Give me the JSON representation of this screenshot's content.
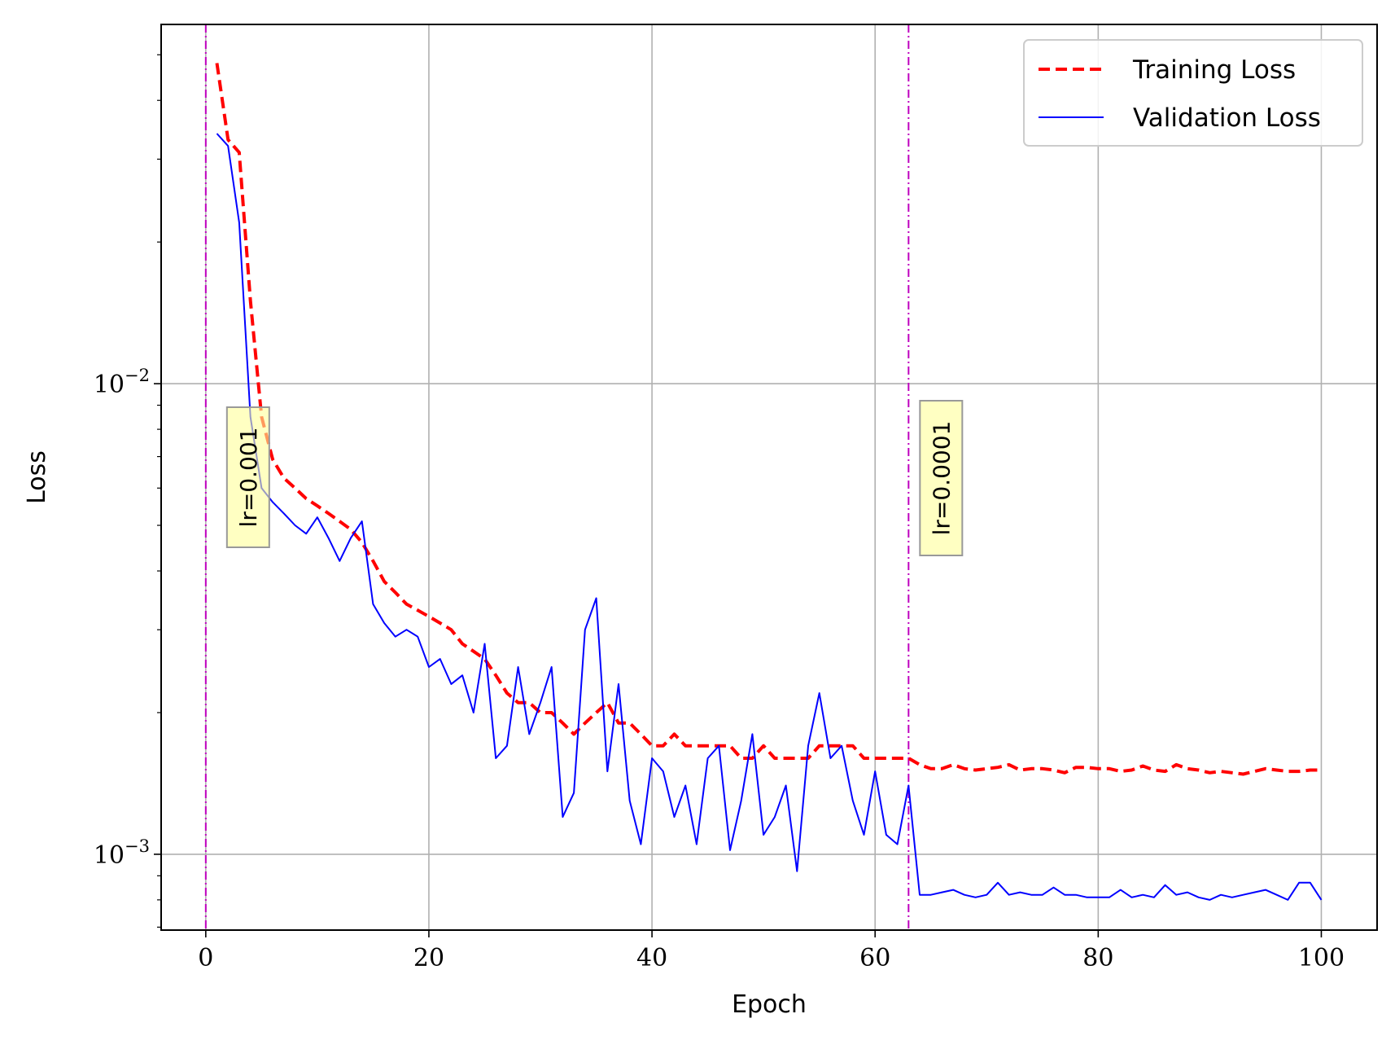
{
  "chart_data": {
    "type": "line",
    "xlabel": "Epoch",
    "ylabel": "Loss",
    "xlim": [
      -4,
      105
    ],
    "ylim": [
      0.00069,
      0.058
    ],
    "y_scale": "log",
    "grid": true,
    "legend_position": "top-right",
    "x_ticks": [
      0,
      20,
      40,
      60,
      80,
      100
    ],
    "x_tick_labels": [
      "0",
      "20",
      "40",
      "60",
      "80",
      "100"
    ],
    "y_major_ticks": [
      0.001,
      0.01
    ],
    "y_major_tick_labels": [
      {
        "base": "10",
        "exp": "−3"
      },
      {
        "base": "10",
        "exp": "−2"
      }
    ],
    "vlines": [
      {
        "x": 0,
        "label": "lr=0.001",
        "color": "#bf00bf"
      },
      {
        "x": 63,
        "label": "lr=0.0001",
        "color": "#bf00bf"
      }
    ],
    "series": [
      {
        "name": "Training Loss",
        "color": "#ff0000",
        "style": "dashed",
        "x": [
          1,
          2,
          3,
          4,
          5,
          6,
          7,
          8,
          9,
          10,
          11,
          12,
          13,
          14,
          15,
          16,
          17,
          18,
          19,
          20,
          21,
          22,
          23,
          24,
          25,
          26,
          27,
          28,
          29,
          30,
          31,
          32,
          33,
          34,
          35,
          36,
          37,
          38,
          39,
          40,
          41,
          42,
          43,
          44,
          45,
          46,
          47,
          48,
          49,
          50,
          51,
          52,
          53,
          54,
          55,
          56,
          57,
          58,
          59,
          60,
          61,
          62,
          63,
          64,
          65,
          66,
          67,
          68,
          69,
          70,
          71,
          72,
          73,
          74,
          75,
          76,
          77,
          78,
          79,
          80,
          81,
          82,
          83,
          84,
          85,
          86,
          87,
          88,
          89,
          90,
          91,
          92,
          93,
          94,
          95,
          96,
          97,
          98,
          99,
          100
        ],
        "values": [
          0.048,
          0.033,
          0.031,
          0.015,
          0.0085,
          0.0069,
          0.0063,
          0.006,
          0.0057,
          0.0055,
          0.0053,
          0.0051,
          0.0049,
          0.0046,
          0.0042,
          0.0038,
          0.0036,
          0.0034,
          0.0033,
          0.0032,
          0.0031,
          0.003,
          0.0028,
          0.0027,
          0.0026,
          0.0024,
          0.0022,
          0.0021,
          0.0021,
          0.002,
          0.002,
          0.0019,
          0.0018,
          0.0019,
          0.002,
          0.0021,
          0.0019,
          0.0019,
          0.0018,
          0.0017,
          0.0017,
          0.0018,
          0.0017,
          0.0017,
          0.0017,
          0.0017,
          0.0017,
          0.0016,
          0.0016,
          0.0017,
          0.0016,
          0.0016,
          0.0016,
          0.0016,
          0.0017,
          0.0017,
          0.0017,
          0.0017,
          0.0016,
          0.0016,
          0.0016,
          0.0016,
          0.0016,
          0.00155,
          0.00152,
          0.00152,
          0.00155,
          0.00152,
          0.00151,
          0.00152,
          0.00153,
          0.00155,
          0.00151,
          0.00152,
          0.00152,
          0.00151,
          0.00149,
          0.00153,
          0.00153,
          0.00152,
          0.00152,
          0.0015,
          0.00151,
          0.00154,
          0.00151,
          0.0015,
          0.00155,
          0.00152,
          0.00151,
          0.00149,
          0.0015,
          0.00149,
          0.00148,
          0.0015,
          0.00152,
          0.00151,
          0.0015,
          0.0015,
          0.00151,
          0.00151
        ]
      },
      {
        "name": "Validation Loss",
        "color": "#0000ff",
        "style": "solid",
        "x": [
          1,
          2,
          3,
          4,
          5,
          6,
          7,
          8,
          9,
          10,
          11,
          12,
          13,
          14,
          15,
          16,
          17,
          18,
          19,
          20,
          21,
          22,
          23,
          24,
          25,
          26,
          27,
          28,
          29,
          30,
          31,
          32,
          33,
          34,
          35,
          36,
          37,
          38,
          39,
          40,
          41,
          42,
          43,
          44,
          45,
          46,
          47,
          48,
          49,
          50,
          51,
          52,
          53,
          54,
          55,
          56,
          57,
          58,
          59,
          60,
          61,
          62,
          63,
          64,
          65,
          66,
          67,
          68,
          69,
          70,
          71,
          72,
          73,
          74,
          75,
          76,
          77,
          78,
          79,
          80,
          81,
          82,
          83,
          84,
          85,
          86,
          87,
          88,
          89,
          90,
          91,
          92,
          93,
          94,
          95,
          96,
          97,
          98,
          99,
          100
        ],
        "values": [
          0.034,
          0.032,
          0.022,
          0.0085,
          0.006,
          0.0056,
          0.0053,
          0.005,
          0.0048,
          0.0052,
          0.0047,
          0.0042,
          0.0047,
          0.0051,
          0.0034,
          0.0031,
          0.0029,
          0.003,
          0.0029,
          0.0025,
          0.0026,
          0.0023,
          0.0024,
          0.002,
          0.0028,
          0.0016,
          0.0017,
          0.0025,
          0.0018,
          0.0021,
          0.0025,
          0.0012,
          0.00135,
          0.003,
          0.0035,
          0.0015,
          0.0023,
          0.0013,
          0.00105,
          0.0016,
          0.0015,
          0.0012,
          0.0014,
          0.00105,
          0.0016,
          0.0017,
          0.00102,
          0.0013,
          0.0018,
          0.0011,
          0.0012,
          0.0014,
          0.00092,
          0.0017,
          0.0022,
          0.0016,
          0.0017,
          0.0013,
          0.0011,
          0.0015,
          0.0011,
          0.00105,
          0.0014,
          0.00082,
          0.00082,
          0.00083,
          0.00084,
          0.00082,
          0.00081,
          0.00082,
          0.00087,
          0.00082,
          0.00083,
          0.00082,
          0.00082,
          0.00085,
          0.00082,
          0.00082,
          0.00081,
          0.00081,
          0.00081,
          0.00084,
          0.00081,
          0.00082,
          0.00081,
          0.00086,
          0.00082,
          0.00083,
          0.00081,
          0.0008,
          0.00082,
          0.00081,
          0.00082,
          0.00083,
          0.00084,
          0.00082,
          0.0008,
          0.00087,
          0.00087,
          0.0008
        ]
      }
    ]
  }
}
